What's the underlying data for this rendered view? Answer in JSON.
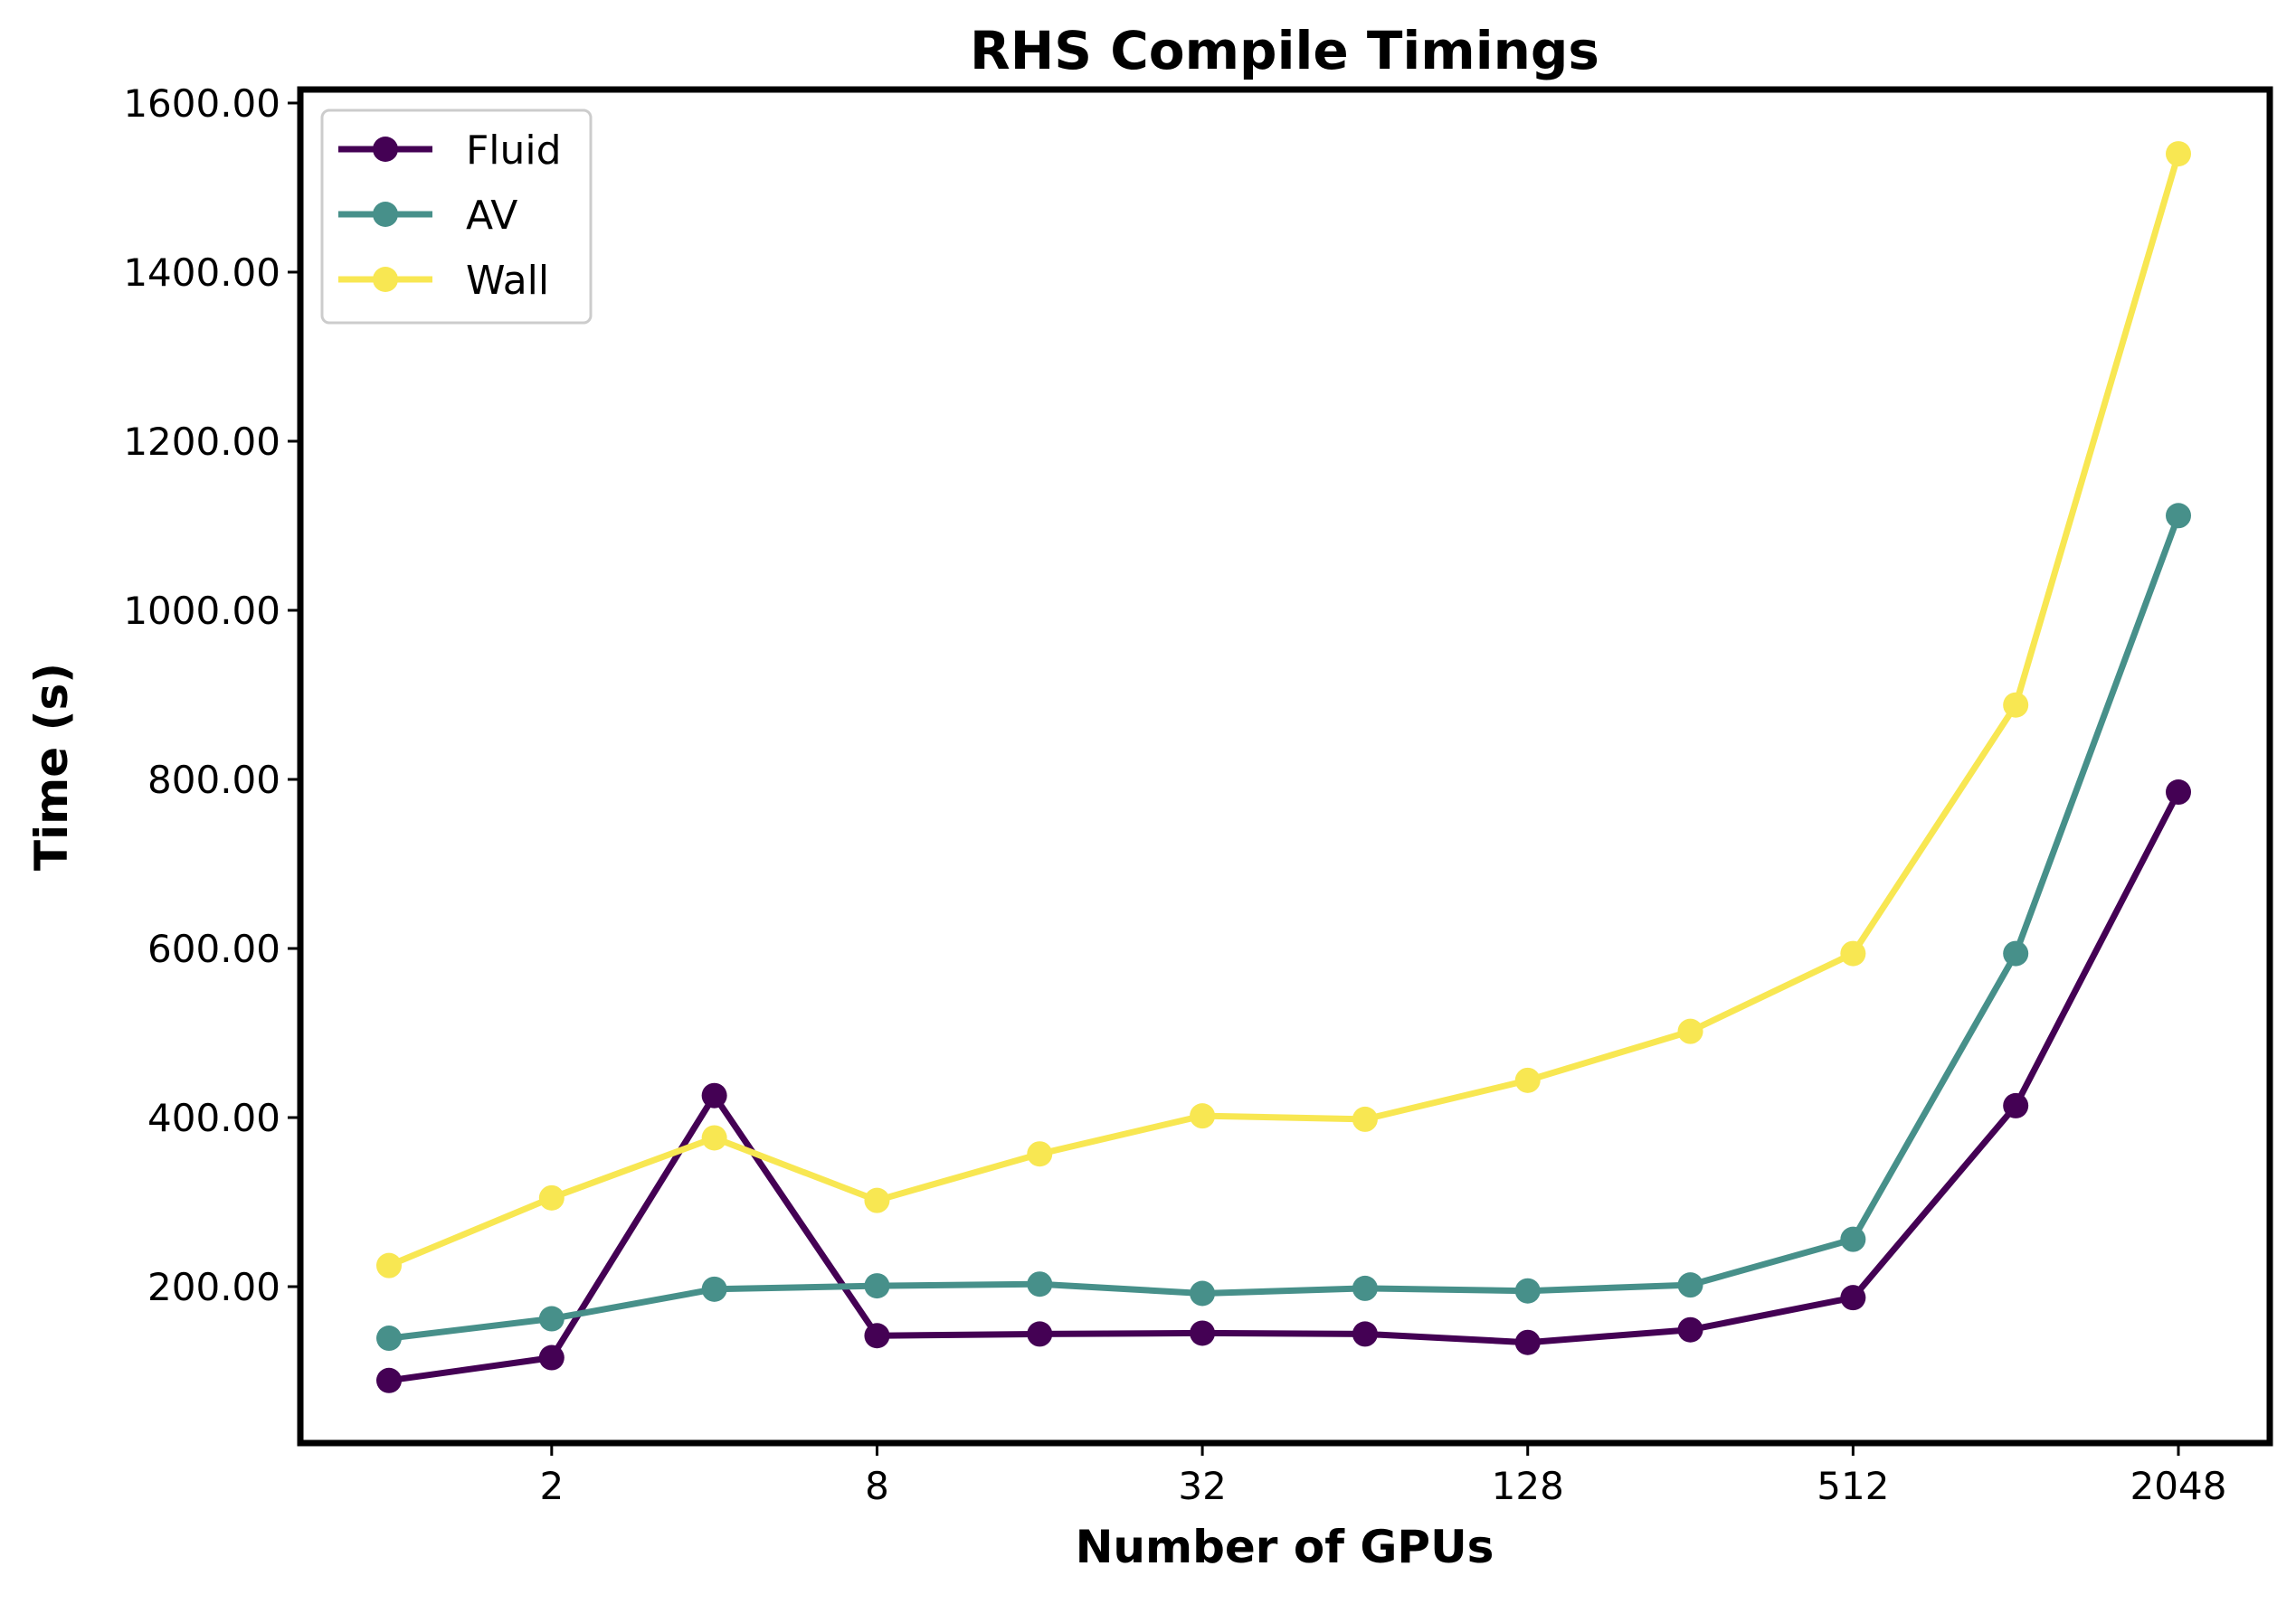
{
  "chart_data": {
    "type": "line",
    "title": "RHS Compile Timings",
    "xlabel": "Number of GPUs",
    "ylabel": "Time (s)",
    "x_scale": "log2",
    "x": [
      1,
      2,
      4,
      8,
      16,
      32,
      64,
      128,
      256,
      512,
      1024,
      2048
    ],
    "x_ticks": [
      2,
      8,
      32,
      128,
      512,
      2048
    ],
    "x_tick_labels": [
      "2",
      "8",
      "32",
      "128",
      "512",
      "2048"
    ],
    "y_ticks": [
      200,
      400,
      600,
      800,
      1000,
      1200,
      1400,
      1600
    ],
    "y_tick_labels": [
      "200.00",
      "400.00",
      "600.00",
      "800.00",
      "1000.00",
      "1200.00",
      "1400.00",
      "1600.00"
    ],
    "ylim": [
      15,
      1616
    ],
    "legend_position": "top-left",
    "grid": false,
    "series": [
      {
        "name": "Fluid",
        "color": "#440154",
        "values": [
          89,
          116,
          426,
          142,
          144,
          145,
          144,
          134,
          149,
          187,
          414,
          785
        ]
      },
      {
        "name": "AV",
        "color": "#47908A",
        "values": [
          139,
          162,
          197,
          201,
          203,
          192,
          198,
          195,
          202,
          256,
          594,
          1112
        ]
      },
      {
        "name": "Wall",
        "color": "#F8E752",
        "values": [
          225,
          305,
          376,
          302,
          357,
          402,
          398,
          444,
          502,
          594,
          888,
          1540
        ]
      }
    ]
  }
}
